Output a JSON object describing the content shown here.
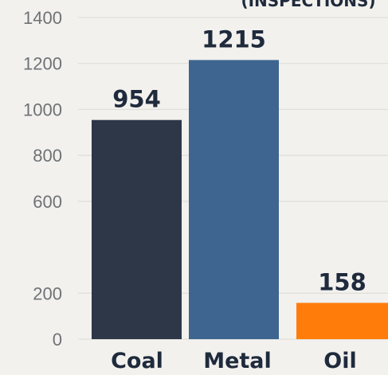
{
  "chart_data": {
    "type": "bar",
    "title": "(INSPECTIONS)",
    "categories": [
      "Coal",
      "Metal",
      "Oil"
    ],
    "values": [
      954,
      1215,
      158
    ],
    "value_labels": [
      "954",
      "1215",
      "158"
    ],
    "bar_colors": [
      "#2e3748",
      "#3e6590",
      "#ff7c0a"
    ],
    "y_ticks": [
      "0",
      "200",
      "600",
      "800",
      "1000",
      "1200",
      "1400"
    ],
    "ylim": [
      0,
      1400
    ],
    "grid": true,
    "legend": "none"
  },
  "colors": {
    "background": "#f2f1ee",
    "text_dark": "#1f2a3c",
    "tick_gray": "#6f7276"
  }
}
